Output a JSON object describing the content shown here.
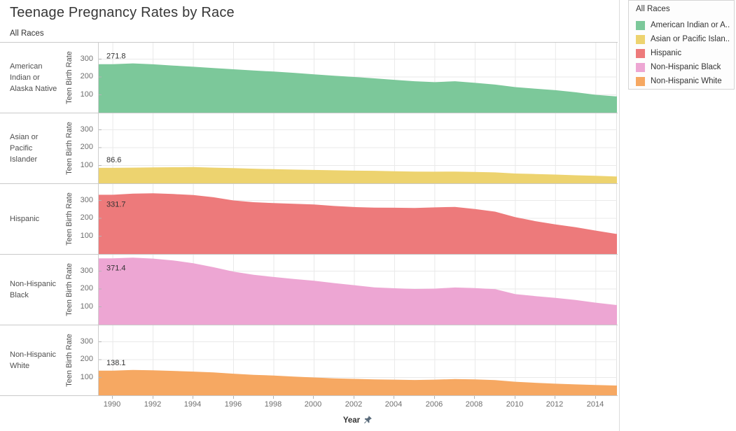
{
  "title": "Teenage Pregnancy Rates by Race",
  "column_header": "All Races",
  "axis": {
    "x_title": "Year",
    "y_title": "Teen Birth Rate",
    "x_ticks": [
      "1990",
      "1992",
      "1994",
      "1996",
      "1998",
      "2000",
      "2002",
      "2004",
      "2006",
      "2008",
      "2010",
      "2012",
      "2014"
    ],
    "y_tick_labels": [
      "300",
      "200",
      "100"
    ],
    "y_tick_values": [
      300,
      200,
      100
    ]
  },
  "legend": {
    "title": "All Races",
    "items": [
      {
        "label": "American Indian or A..",
        "color": "#7cc89a"
      },
      {
        "label": "Asian or Pacific Islan..",
        "color": "#edd36f"
      },
      {
        "label": "Hispanic",
        "color": "#ed7a7b"
      },
      {
        "label": "Non-Hispanic Black",
        "color": "#eda6d3"
      },
      {
        "label": "Non-Hispanic White",
        "color": "#f6a862"
      }
    ]
  },
  "chart_data": {
    "type": "area",
    "title": "Teenage Pregnancy Rates by Race",
    "xlabel": "Year",
    "ylabel": "Teen Birth Rate",
    "ylim": [
      0,
      392
    ],
    "x_domain": [
      1989.3,
      2015.05
    ],
    "grid": true,
    "legend_position": "top-right",
    "x": [
      1990,
      1991,
      1992,
      1993,
      1994,
      1995,
      1996,
      1997,
      1998,
      1999,
      2000,
      2001,
      2002,
      2003,
      2004,
      2005,
      2006,
      2007,
      2008,
      2009,
      2010,
      2011,
      2012,
      2013,
      2014,
      2015
    ],
    "series": [
      {
        "name": "American Indian or Alaska Native",
        "color": "#7cc89a",
        "first_label": "271.8",
        "values": [
          271.8,
          276,
          271,
          264,
          257,
          250,
          243,
          236,
          230,
          223,
          215,
          207,
          200,
          192,
          184,
          176,
          171,
          176,
          167,
          157,
          143,
          134,
          126,
          114,
          100,
          91
        ]
      },
      {
        "name": "Asian or Pacific Islander",
        "color": "#edd36f",
        "first_label": "86.6",
        "values": [
          86.6,
          88,
          89,
          90,
          91,
          88,
          85,
          82,
          79,
          77,
          75,
          73,
          71,
          70,
          68,
          66,
          65,
          66,
          64,
          61,
          55,
          52,
          49,
          45,
          42,
          38
        ]
      },
      {
        "name": "Hispanic",
        "color": "#ed7a7b",
        "first_label": "331.7",
        "values": [
          331.7,
          338,
          340,
          336,
          330,
          318,
          300,
          290,
          285,
          281,
          277,
          269,
          263,
          260,
          259,
          258,
          261,
          264,
          252,
          237,
          206,
          184,
          166,
          150,
          131,
          113
        ]
      },
      {
        "name": "Non-Hispanic Black",
        "color": "#eda6d3",
        "first_label": "371.4",
        "values": [
          371.4,
          375,
          370,
          360,
          344,
          322,
          297,
          279,
          267,
          256,
          246,
          233,
          221,
          209,
          204,
          200,
          202,
          208,
          205,
          199,
          171,
          160,
          150,
          138,
          123,
          110
        ]
      },
      {
        "name": "Non-Hispanic White",
        "color": "#f6a862",
        "first_label": "138.1",
        "values": [
          138.1,
          142,
          140,
          137,
          133,
          128,
          121,
          115,
          111,
          105,
          100,
          95,
          92,
          89,
          88,
          86,
          88,
          91,
          89,
          85,
          76,
          70,
          65,
          61,
          58,
          55
        ]
      }
    ]
  }
}
